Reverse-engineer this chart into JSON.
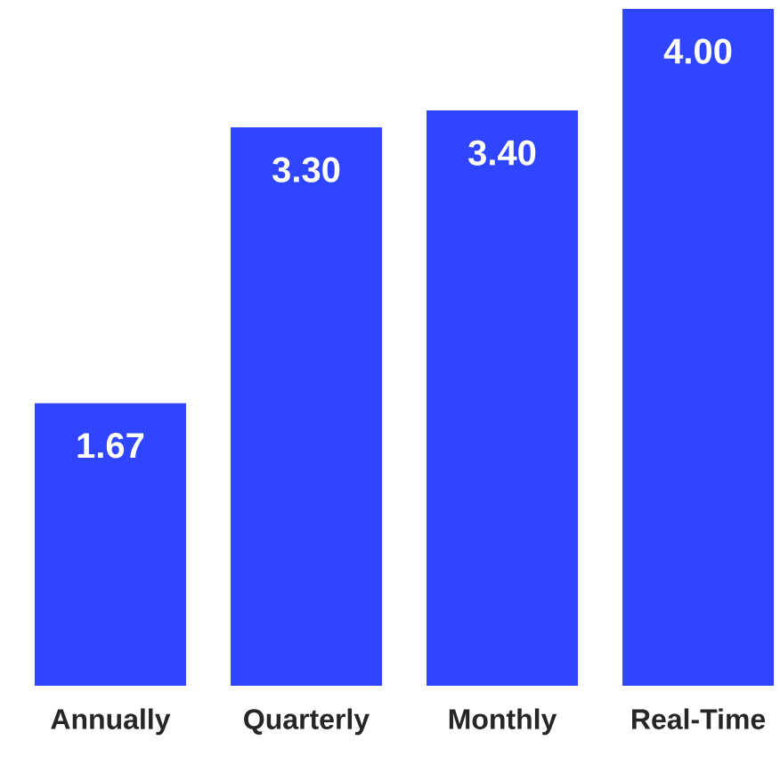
{
  "chart_data": {
    "type": "bar",
    "categories": [
      "Annually",
      "Quarterly",
      "Monthly",
      "Real-Time"
    ],
    "values": [
      1.67,
      3.3,
      3.4,
      4.0
    ],
    "value_labels": [
      "1.67",
      "3.30",
      "3.40",
      "4.00"
    ],
    "color": "#2f45ff",
    "ylim": [
      0,
      4
    ]
  }
}
